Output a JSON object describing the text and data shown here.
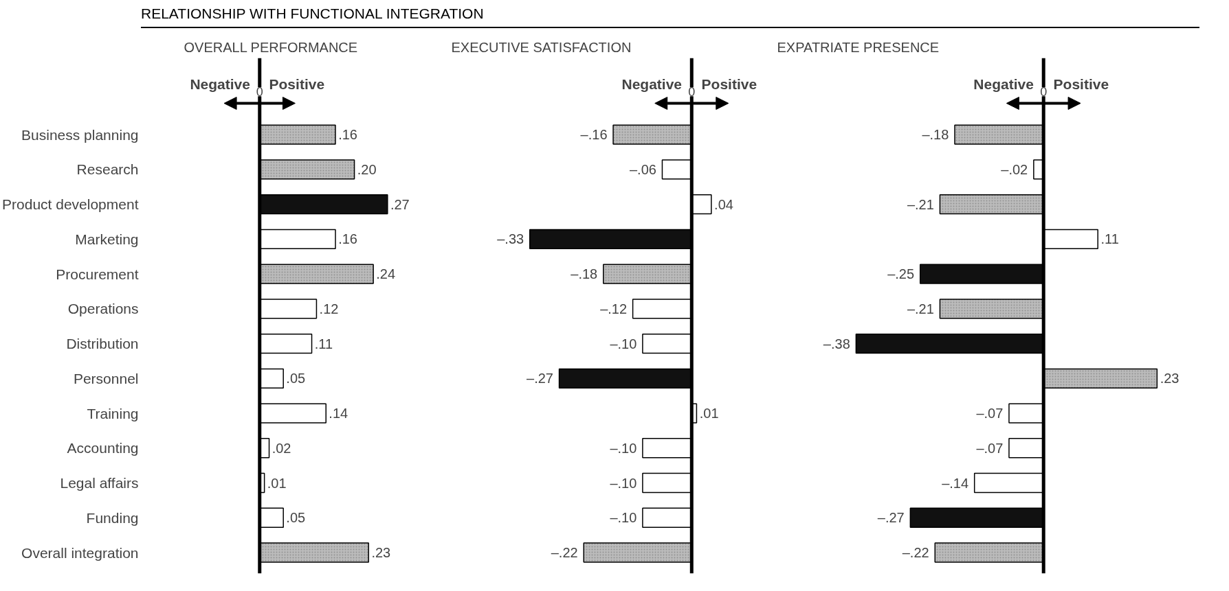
{
  "chart_data": [
    {
      "type": "bar",
      "orientation": "horizontal",
      "title": "OVERALL PERFORMANCE",
      "annotations": [
        "RELATIONSHIP WITH FUNCTIONAL INTEGRATION",
        "0",
        "Negative",
        "Positive"
      ],
      "categories": [
        "Business planning",
        "Research",
        "Product development",
        "Marketing",
        "Procurement",
        "Operations",
        "Distribution",
        "Personnel",
        "Training",
        "Accounting",
        "Legal affairs",
        "Funding",
        "Overall integration"
      ],
      "values": [
        0.16,
        0.2,
        0.27,
        0.16,
        0.24,
        0.12,
        0.11,
        0.05,
        0.14,
        0.02,
        0.01,
        0.05,
        0.23
      ],
      "value_labels": [
        ".16",
        ".20",
        ".27",
        ".16",
        ".24",
        ".12",
        ".11",
        ".05",
        ".14",
        ".02",
        ".01",
        ".05",
        ".23"
      ],
      "colors": [
        "#bbbbbb",
        "#bbbbbb",
        "#111111",
        "#ffffff",
        "#bbbbbb",
        "#ffffff",
        "#ffffff",
        "#ffffff",
        "#ffffff",
        "#ffffff",
        "#ffffff",
        "#ffffff",
        "#bbbbbb"
      ],
      "tick_labels": "y"
    },
    {
      "type": "bar",
      "orientation": "horizontal",
      "title": "EXECUTIVE SATISFACTION",
      "annotations": [
        "0",
        "Negative",
        "Positive"
      ],
      "categories": [
        null,
        null,
        null,
        null,
        null,
        null,
        null,
        null,
        null,
        null,
        null,
        null,
        null
      ],
      "values": [
        -0.16,
        -0.06,
        0.04,
        -0.33,
        -0.18,
        -0.12,
        -0.1,
        -0.27,
        0.01,
        -0.1,
        -0.1,
        -0.1,
        -0.22
      ],
      "value_labels": [
        "–.16",
        "–.06",
        ".04",
        "–.33",
        "–.18",
        "–.12",
        "–.10",
        "–.27",
        ".01",
        "–.10",
        "–.10",
        "–.10",
        "–.22"
      ],
      "colors": [
        "#bbbbbb",
        "#ffffff",
        "#ffffff",
        "#111111",
        "#bbbbbb",
        "#ffffff",
        "#ffffff",
        "#111111",
        "#ffffff",
        "#ffffff",
        "#ffffff",
        "#ffffff",
        "#bbbbbb"
      ]
    },
    {
      "type": "bar",
      "orientation": "horizontal",
      "title": "EXPATRIATE PRESENCE",
      "annotations": [
        "0",
        "Negative",
        "Positive"
      ],
      "categories": [
        null,
        null,
        null,
        null,
        null,
        null,
        null,
        null,
        null,
        null,
        null,
        null,
        null
      ],
      "values": [
        -0.18,
        -0.02,
        -0.21,
        0.11,
        -0.25,
        -0.21,
        -0.38,
        0.23,
        -0.07,
        -0.07,
        -0.14,
        -0.27,
        -0.22
      ],
      "value_labels": [
        "–.18",
        "–.02",
        "–.21",
        ".11",
        "–.25",
        "–.21",
        "–.38",
        ".23",
        "–.07",
        "–.07",
        "–.14",
        "–.27",
        "–.22"
      ],
      "colors": [
        "#bbbbbb",
        "#ffffff",
        "#bbbbbb",
        "#ffffff",
        "#111111",
        "#bbbbbb",
        "#111111",
        "#bbbbbb",
        "#ffffff",
        "#ffffff",
        "#ffffff",
        "#111111",
        "#bbbbbb"
      ]
    }
  ]
}
